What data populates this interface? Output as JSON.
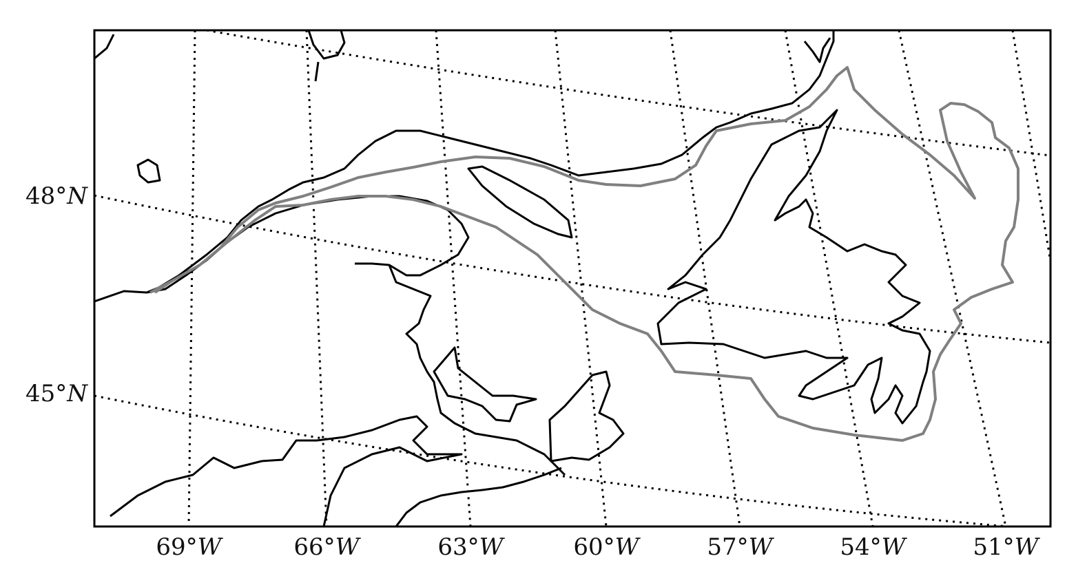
{
  "map": {
    "projection": "oblique conic",
    "graticule_style": "dotted",
    "colors": {
      "frame": "#000000",
      "coastline": "#000000",
      "graticule": "#000000",
      "track": "#808080",
      "background": "#ffffff"
    },
    "longitude_labels": [
      {
        "deg": "69°",
        "hemi": "W"
      },
      {
        "deg": "66°",
        "hemi": "W"
      },
      {
        "deg": "63°",
        "hemi": "W"
      },
      {
        "deg": "60°",
        "hemi": "W"
      },
      {
        "deg": "57°",
        "hemi": "W"
      },
      {
        "deg": "54°",
        "hemi": "W"
      },
      {
        "deg": "51°",
        "hemi": "W"
      }
    ],
    "latitude_labels": [
      {
        "deg": "48°",
        "hemi": "N"
      },
      {
        "deg": "45°",
        "hemi": "N"
      }
    ]
  }
}
